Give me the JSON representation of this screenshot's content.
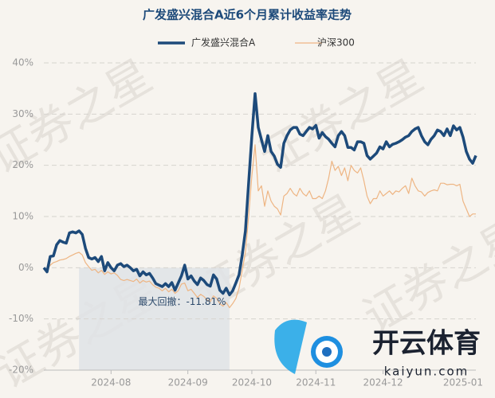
{
  "chart_data": {
    "type": "line",
    "title": "广发盛兴混合A近6个月累计收益率走势",
    "categories": [
      null,
      null,
      null,
      null,
      null,
      null,
      null,
      null,
      null,
      null,
      null,
      null,
      null,
      null,
      null,
      null,
      null,
      null,
      null,
      null,
      null,
      "2024-08",
      null,
      null,
      null,
      null,
      null,
      null,
      null,
      null,
      null,
      null,
      null,
      null,
      null,
      null,
      null,
      null,
      null,
      null,
      null,
      null,
      null,
      null,
      null,
      "2024-09",
      null,
      null,
      null,
      null,
      null,
      null,
      null,
      null,
      null,
      null,
      null,
      null,
      null,
      null,
      null,
      null,
      null,
      null,
      null,
      "2024-10",
      null,
      null,
      null,
      null,
      null,
      null,
      null,
      null,
      null,
      null,
      null,
      null,
      null,
      null,
      null,
      null,
      null,
      null,
      null,
      "2024-11",
      null,
      null,
      null,
      null,
      null,
      null,
      null,
      null,
      null,
      null,
      null,
      null,
      null,
      null,
      null,
      null,
      null,
      null,
      null,
      null,
      "2024-12",
      null,
      null,
      null,
      null,
      null,
      null,
      null,
      null,
      null,
      null,
      null,
      null,
      null,
      null,
      null,
      null,
      null,
      null,
      null,
      null,
      null,
      null,
      null,
      null,
      "2025-01",
      null,
      null,
      null,
      null
    ],
    "series": [
      {
        "name": "广发盛兴混合A",
        "color": "#1d4a7a",
        "width": 3.5,
        "values": [
          0,
          -0.8,
          2.2,
          2.3,
          4.5,
          5.3,
          5.0,
          4.8,
          6.8,
          7.0,
          6.8,
          7.2,
          6.5,
          3.8,
          2.0,
          1.7,
          2.0,
          1.2,
          2.2,
          -0.6,
          1.0,
          0.0,
          -0.6,
          0.5,
          0.8,
          0.2,
          0.5,
          0.0,
          -0.6,
          -0.3,
          -1.6,
          -0.8,
          -1.4,
          -1.1,
          -2.0,
          -3.1,
          -3.4,
          -3.7,
          -3.1,
          -3.7,
          -2.9,
          -4.4,
          -3.0,
          -1.6,
          0.5,
          -2.2,
          -1.6,
          -2.6,
          -3.3,
          -2.0,
          -2.5,
          -3.3,
          -3.6,
          -1.4,
          -2.2,
          -4.4,
          -5.0,
          -4.0,
          -5.3,
          -4.5,
          -3.0,
          -1.4,
          2.5,
          7.2,
          16.5,
          25.8,
          34.0,
          27.4,
          25.0,
          22.7,
          25.8,
          22.7,
          21.8,
          20.2,
          19.6,
          24.3,
          25.8,
          26.9,
          27.4,
          27.4,
          26.1,
          25.8,
          26.6,
          27.4,
          27.1,
          27.8,
          25.3,
          26.4,
          25.6,
          25.1,
          24.3,
          23.6,
          25.8,
          26.6,
          25.8,
          23.5,
          23.5,
          23.0,
          24.6,
          24.6,
          24.3,
          21.9,
          21.2,
          21.8,
          22.4,
          23.6,
          23.2,
          24.6,
          23.6,
          24.1,
          24.3,
          24.6,
          25.0,
          25.5,
          25.8,
          26.6,
          27.1,
          27.4,
          25.8,
          24.6,
          24.0,
          25.1,
          25.8,
          26.9,
          26.6,
          25.8,
          27.1,
          25.8,
          27.7,
          26.9,
          27.4,
          25.5,
          22.7,
          21.2,
          20.4,
          21.9
        ]
      },
      {
        "name": "沪深300",
        "color": "#eeb583",
        "width": 1.2,
        "values": [
          0,
          -0.5,
          0.5,
          1.0,
          1.2,
          1.5,
          1.6,
          1.8,
          2.2,
          2.5,
          2.8,
          3.0,
          2.5,
          1.0,
          0.2,
          -0.5,
          -0.3,
          -1.0,
          -0.5,
          -1.3,
          -0.8,
          -1.2,
          -1.0,
          -1.5,
          -2.3,
          -2.5,
          -2.3,
          -2.5,
          -2.7,
          -2.2,
          -3.0,
          -2.5,
          -2.8,
          -2.6,
          -3.3,
          -3.8,
          -4.0,
          -4.5,
          -4.0,
          -4.7,
          -4.2,
          -5.0,
          -4.5,
          -3.2,
          -3.0,
          -4.5,
          -4.2,
          -5.0,
          -5.8,
          -5.2,
          -5.6,
          -6.3,
          -6.6,
          -5.5,
          -6.0,
          -7.0,
          -7.5,
          -6.8,
          -7.8,
          -7.0,
          -6.0,
          -4.0,
          -0.5,
          3.0,
          10.0,
          18.0,
          24.0,
          15.0,
          16.0,
          12.0,
          15.0,
          13.0,
          12.0,
          11.5,
          10.3,
          14.0,
          14.5,
          15.5,
          14.5,
          14.0,
          15.5,
          14.5,
          14.0,
          15.0,
          13.5,
          13.5,
          14.0,
          13.5,
          15.0,
          17.5,
          20.8,
          19.0,
          19.8,
          18.0,
          19.5,
          17.0,
          20.0,
          19.0,
          18.5,
          19.5,
          17.0,
          14.0,
          12.5,
          13.5,
          13.5,
          15.0,
          14.0,
          14.5,
          15.0,
          14.3,
          15.0,
          14.8,
          15.5,
          16.0,
          14.5,
          17.5,
          16.0,
          15.0,
          14.8,
          14.0,
          14.7,
          15.0,
          15.2,
          15.0,
          16.5,
          16.5,
          16.2,
          16.3,
          16.3,
          16.0,
          16.3,
          13.0,
          11.5,
          10.0,
          10.5,
          10.5
        ]
      }
    ],
    "ylim": [
      -20,
      40
    ],
    "yticks": [
      {
        "value": -20,
        "label": "-20%"
      },
      {
        "value": -10,
        "label": "-10%"
      },
      {
        "value": 0,
        "label": "0%"
      },
      {
        "value": 10,
        "label": "10%"
      },
      {
        "value": 20,
        "label": "20%"
      },
      {
        "value": 30,
        "label": "30%"
      },
      {
        "value": 40,
        "label": "40%"
      }
    ],
    "grid": true,
    "annotation": "最大回撤：-11.81%",
    "watermark": "证券之星",
    "logo": {
      "title": "开云体育",
      "url": "kaiyun.com"
    }
  }
}
